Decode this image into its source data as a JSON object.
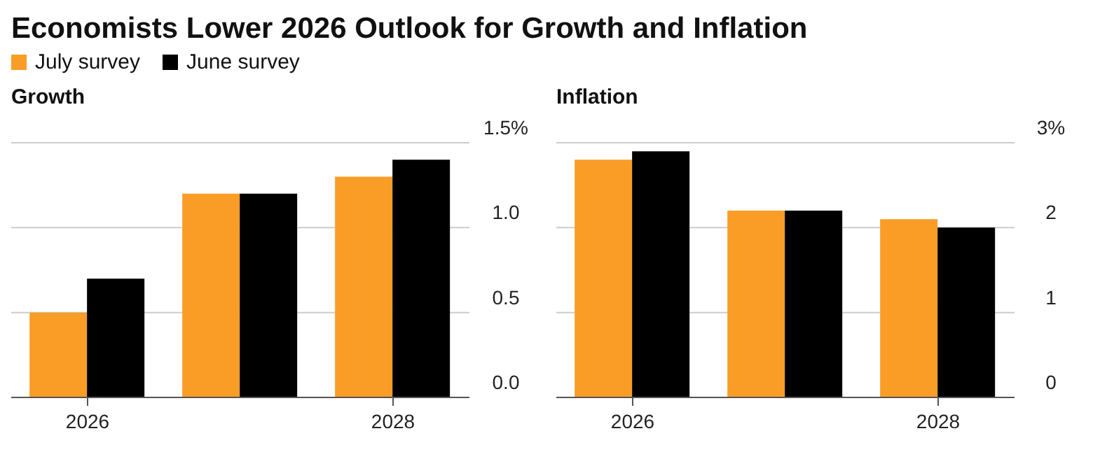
{
  "chart_data": [
    {
      "type": "bar",
      "title": "Economists Lower 2026 Outlook for Growth and Inflation",
      "subtitle": "Growth",
      "categories": [
        "2026",
        null,
        "2028"
      ],
      "series": [
        {
          "name": "July survey",
          "color": "#f99d27",
          "values": [
            0.5,
            1.2,
            1.3
          ]
        },
        {
          "name": "June survey",
          "color": "#000000",
          "values": [
            0.7,
            1.2,
            1.4
          ]
        }
      ],
      "ylim": [
        0,
        1.5
      ],
      "yticks": [
        {
          "value": 0,
          "label": "0.0"
        },
        {
          "value": 0.5,
          "label": "0.5"
        },
        {
          "value": 1,
          "label": "1.0"
        },
        {
          "value": 1.5,
          "label": "1.5%"
        }
      ],
      "grid": "y",
      "legend": "top left"
    },
    {
      "type": "bar",
      "subtitle": "Inflation",
      "categories": [
        "2026",
        null,
        "2028"
      ],
      "series": [
        {
          "color": "#f99d27",
          "values": [
            2.8,
            2.2,
            2.1
          ]
        },
        {
          "color": "#000000",
          "values": [
            2.9,
            2.2,
            2.0
          ]
        }
      ],
      "ylim": [
        0,
        3
      ],
      "yticks": [
        0,
        1,
        2,
        {
          "value": 3,
          "label": "3%"
        }
      ],
      "grid": "y"
    }
  ]
}
